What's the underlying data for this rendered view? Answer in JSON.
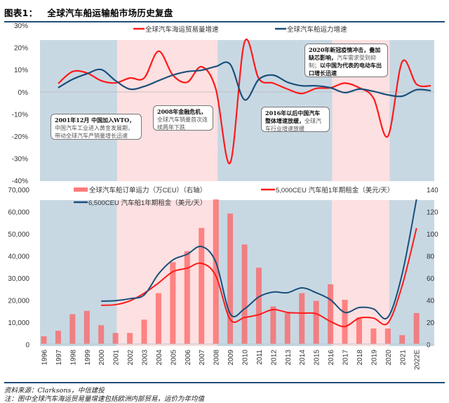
{
  "title": {
    "label": "图表1：",
    "text": "全球汽车船运输船市场历史复盘"
  },
  "annotations": [
    {
      "bold": "2001年12月 中国加入WTO，",
      "text": "中国汽车工业进入黄金发展期，带动全球汽车产销量增长迅速"
    },
    {
      "bold": "2008年金融危机，",
      "text": "全球汽车销量首次连续两年下跌"
    },
    {
      "bold": "2016年以后中国汽车整体增速放缓，",
      "text": "全球汽车行业增速放缓"
    },
    {
      "bold": "2020年新冠疫情冲击，叠加缺芯影响，",
      "text": "汽车需求受到抑制；",
      "bold2": "以中国为代表的电动车出口增长迅速"
    }
  ],
  "footer": {
    "source": "资料来源：Clarksons，中信建投",
    "note": "注：图中全球汽车海运贸易量增速包括欧洲内部贸易，运价为年均值"
  },
  "colors": {
    "red": "#ff1a1a",
    "blue": "#1a4f7a",
    "bar": "#ff5a5a",
    "band_blue": "#c8d8e3",
    "band_pink": "#fde0e1"
  },
  "chart_data": [
    {
      "type": "line",
      "y_ticks": [
        "30%",
        "20%",
        "10%",
        "0%",
        "-10%",
        "-20%",
        "-30%",
        "-40%"
      ],
      "ylim": [
        -40,
        30
      ],
      "x": [
        1997,
        1998,
        1999,
        2000,
        2001,
        2002,
        2003,
        2004,
        2005,
        2006,
        2007,
        2008,
        2009,
        2010,
        2011,
        2012,
        2013,
        2014,
        2015,
        2016,
        2017,
        2018,
        2019,
        2020,
        2021,
        2022,
        2023
      ],
      "series": [
        {
          "name": "全球汽车海运贸易量增速",
          "color": "#ff1a1a",
          "values": [
            3.8,
            9.2,
            8.6,
            5.1,
            4.1,
            6.3,
            6.3,
            18.4,
            7.6,
            4.4,
            11.4,
            1.3,
            -32,
            22.5,
            6,
            4,
            1.3,
            -0.7,
            1.6,
            1.9,
            4,
            1.9,
            -2.8,
            -20,
            13.6,
            3.5,
            2.8
          ]
        },
        {
          "name": "全球汽车船运力增速",
          "color": "#1a4f7a",
          "values": [
            1.9,
            5.7,
            8.2,
            10.1,
            5.1,
            1.3,
            2.5,
            5.1,
            7.6,
            9.2,
            9.8,
            11.5,
            12.5,
            -3.5,
            5.7,
            7.6,
            4.4,
            2.8,
            2.8,
            1.9,
            -0.3,
            1.3,
            0.3,
            -1.3,
            -1.9,
            1,
            0.6
          ]
        }
      ],
      "periods": [
        {
          "from": 1996,
          "to": 2001,
          "shade": "blue"
        },
        {
          "from": 2001,
          "to": 2008,
          "shade": "pink"
        },
        {
          "from": 2008,
          "to": 2016,
          "shade": "blue"
        },
        {
          "from": 2016,
          "to": 2020,
          "shade": "pink"
        },
        {
          "from": 2020,
          "to": 2023,
          "shade": "blue"
        }
      ]
    },
    {
      "type": "bar+line",
      "categories": [
        "1996",
        "1997",
        "1998",
        "1999",
        "2000",
        "2001",
        "2002",
        "2003",
        "2004",
        "2005",
        "2006",
        "2007",
        "2008",
        "2009",
        "2010",
        "2011",
        "2012",
        "2013",
        "2014",
        "2015",
        "2016",
        "2017",
        "2018",
        "2019",
        "2020",
        "2021",
        "2022E"
      ],
      "y_left_ticks": [
        "70,000",
        "60,000",
        "50,000",
        "40,000",
        "30,000",
        "20,000",
        "10,000",
        "0"
      ],
      "y_right_ticks": [
        "140",
        "120",
        "100",
        "80",
        "60",
        "40",
        "20",
        "0"
      ],
      "ylim_left": [
        0,
        70000
      ],
      "ylim_right": [
        0,
        140
      ],
      "bars": {
        "name": "全球汽车船订单运力（万CEU）（右轴）",
        "axis": "right",
        "values": [
          7,
          12,
          27,
          30,
          17,
          10,
          10,
          22,
          46,
          74,
          84,
          105,
          150,
          118,
          90,
          69,
          34,
          28,
          46,
          39,
          54,
          40,
          24,
          14,
          14,
          8,
          28
        ]
      },
      "series": [
        {
          "name": "5,000CEU 汽车船1年期租金（美元/天）",
          "color": "#ff1a1a",
          "axis": "left",
          "values": [
            null,
            null,
            null,
            null,
            17500,
            17800,
            19500,
            23000,
            27600,
            32700,
            34300,
            36500,
            30800,
            11100,
            12000,
            13300,
            15600,
            14300,
            14000,
            13700,
            10200,
            7900,
            11700,
            11700,
            9500,
            26400,
            52400
          ]
        },
        {
          "name": "6,500CEU 汽车船1年期租金（美元/天）",
          "color": "#1a4f7a",
          "axis": "left",
          "values": [
            null,
            null,
            null,
            null,
            19400,
            19600,
            20500,
            22200,
            31700,
            38000,
            40600,
            44100,
            37000,
            13700,
            15900,
            21300,
            23500,
            23200,
            25400,
            23200,
            20000,
            14300,
            16500,
            15900,
            12100,
            31700,
            67000
          ]
        }
      ],
      "periods": [
        {
          "from": "1996",
          "to": "2001",
          "shade": "blue"
        },
        {
          "from": "2001",
          "to": "2008",
          "shade": "pink"
        },
        {
          "from": "2008",
          "to": "2016",
          "shade": "blue"
        },
        {
          "from": "2016",
          "to": "2020",
          "shade": "pink"
        },
        {
          "from": "2020",
          "to": "2022E",
          "shade": "blue"
        }
      ]
    }
  ]
}
